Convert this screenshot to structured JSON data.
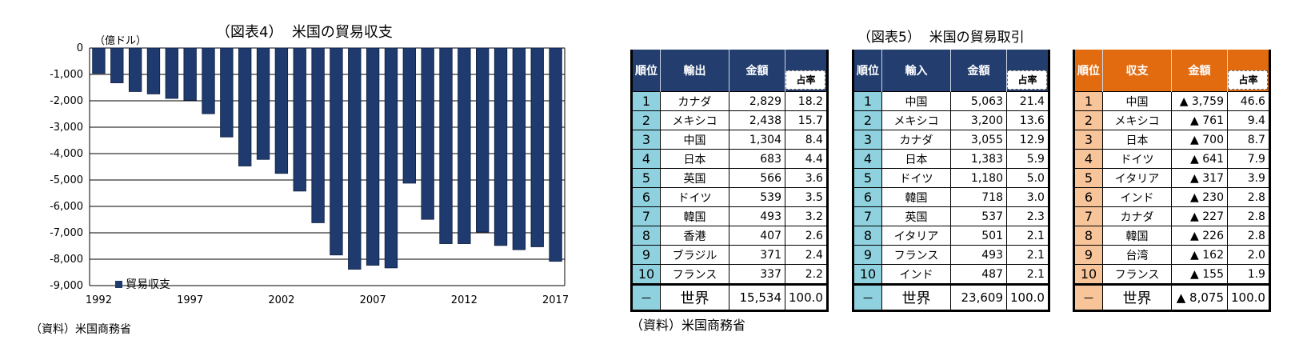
{
  "left": {
    "title": "（図表4）  米国の貿易収支",
    "unit": "（億ドル）",
    "source": "（資料）米国商務省"
  },
  "chart_data": {
    "type": "bar",
    "title": "（図表4）  米国の貿易収支",
    "ylabel": "（億ドル）",
    "ylim": [
      -9000,
      0
    ],
    "yticks": [
      0,
      -1000,
      -2000,
      -3000,
      -4000,
      -5000,
      -6000,
      -7000,
      -8000,
      -9000
    ],
    "ytick_labels": [
      "0",
      "-1,000",
      "-2,000",
      "-3,000",
      "-4,000",
      "-5,000",
      "-6,000",
      "-7,000",
      "-8,000",
      "-9,000"
    ],
    "xtick_labels": [
      "1992",
      "1997",
      "2002",
      "2007",
      "2012",
      "2017"
    ],
    "categories": [
      "1992",
      "1993",
      "1994",
      "1995",
      "1996",
      "1997",
      "1998",
      "1999",
      "2000",
      "2001",
      "2002",
      "2003",
      "2004",
      "2005",
      "2006",
      "2007",
      "2008",
      "2009",
      "2010",
      "2011",
      "2012",
      "2013",
      "2014",
      "2015",
      "2016",
      "2017"
    ],
    "series": [
      {
        "name": "貿易収支",
        "color": "#1f3a6e",
        "values": [
          -960,
          -1320,
          -1650,
          -1740,
          -1910,
          -1980,
          -2490,
          -3370,
          -4470,
          -4220,
          -4750,
          -5420,
          -6620,
          -7840,
          -8380,
          -8230,
          -8330,
          -5120,
          -6490,
          -7410,
          -7410,
          -6970,
          -7480,
          -7640,
          -7530,
          -8080
        ]
      }
    ],
    "legend_position": "lower-left",
    "grid": true
  },
  "right": {
    "title": "（図表5）  米国の貿易取引",
    "source": "（資料）米国商務省",
    "colors": {
      "blue_header": "#223d6e",
      "blue_rank": "#8fd1df",
      "orange_header": "#e26b10",
      "orange_rank": "#f8c59a"
    },
    "tables": [
      {
        "headers": [
          "順位",
          "輸出",
          "金額",
          "占率"
        ],
        "rows": [
          [
            "1",
            "カナダ",
            "2,829",
            "18.2"
          ],
          [
            "2",
            "メキシコ",
            "2,438",
            "15.7"
          ],
          [
            "3",
            "中国",
            "1,304",
            "8.4"
          ],
          [
            "4",
            "日本",
            "683",
            "4.4"
          ],
          [
            "5",
            "英国",
            "566",
            "3.6"
          ],
          [
            "6",
            "ドイツ",
            "539",
            "3.5"
          ],
          [
            "7",
            "韓国",
            "493",
            "3.2"
          ],
          [
            "8",
            "香港",
            "407",
            "2.6"
          ],
          [
            "9",
            "ブラジル",
            "371",
            "2.4"
          ],
          [
            "10",
            "フランス",
            "337",
            "2.2"
          ]
        ],
        "total": [
          "－",
          "世界",
          "15,534",
          "100.0"
        ]
      },
      {
        "headers": [
          "順位",
          "輸入",
          "金額",
          "占率"
        ],
        "rows": [
          [
            "1",
            "中国",
            "5,063",
            "21.4"
          ],
          [
            "2",
            "メキシコ",
            "3,200",
            "13.6"
          ],
          [
            "3",
            "カナダ",
            "3,055",
            "12.9"
          ],
          [
            "4",
            "日本",
            "1,383",
            "5.9"
          ],
          [
            "5",
            "ドイツ",
            "1,180",
            "5.0"
          ],
          [
            "6",
            "韓国",
            "718",
            "3.0"
          ],
          [
            "7",
            "英国",
            "537",
            "2.3"
          ],
          [
            "8",
            "イタリア",
            "501",
            "2.1"
          ],
          [
            "9",
            "フランス",
            "493",
            "2.1"
          ],
          [
            "10",
            "インド",
            "487",
            "2.1"
          ]
        ],
        "total": [
          "－",
          "世界",
          "23,609",
          "100.0"
        ]
      },
      {
        "headers": [
          "順位",
          "収支",
          "金額",
          "占率"
        ],
        "rows": [
          [
            "1",
            "中国",
            "▲ 3,759",
            "46.6"
          ],
          [
            "2",
            "メキシコ",
            "▲ 761",
            "9.4"
          ],
          [
            "3",
            "日本",
            "▲ 700",
            "8.7"
          ],
          [
            "4",
            "ドイツ",
            "▲ 641",
            "7.9"
          ],
          [
            "5",
            "イタリア",
            "▲ 317",
            "3.9"
          ],
          [
            "6",
            "インド",
            "▲ 230",
            "2.8"
          ],
          [
            "7",
            "カナダ",
            "▲ 227",
            "2.8"
          ],
          [
            "8",
            "韓国",
            "▲ 226",
            "2.8"
          ],
          [
            "9",
            "台湾",
            "▲ 162",
            "2.0"
          ],
          [
            "10",
            "フランス",
            "▲ 155",
            "1.9"
          ]
        ],
        "total": [
          "－",
          "世界",
          "▲ 8,075",
          "100.0"
        ]
      }
    ]
  }
}
